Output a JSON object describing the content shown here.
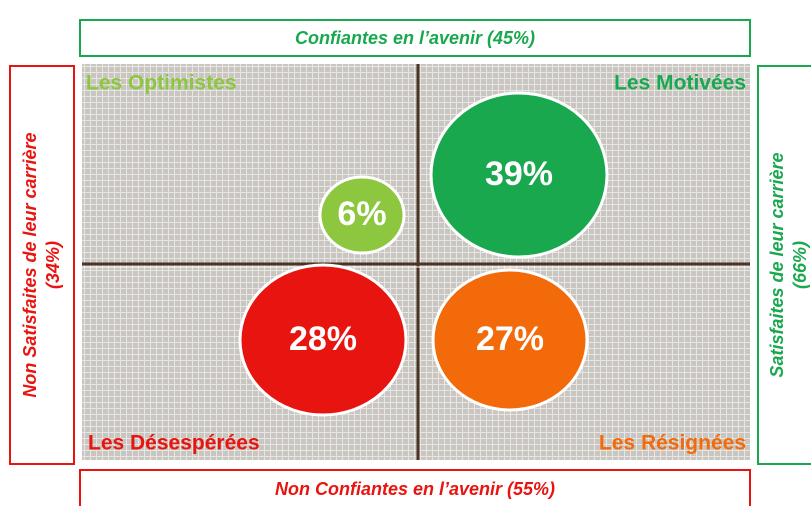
{
  "top": {
    "label": "Confiantes en l’avenir (45%)"
  },
  "bottom": {
    "label": "Non Confiantes en l’avenir (55%)"
  },
  "left": {
    "lines": [
      "Non Satisfaites de leur carrière",
      "(34%)"
    ]
  },
  "right": {
    "lines": [
      "Satisfaites de leur carrière",
      "(66%)"
    ]
  },
  "quadrants": [
    {
      "name": "Les Optimistes",
      "label": "6%"
    },
    {
      "name": "Les Motivées",
      "label": "39%"
    },
    {
      "name": "Les Désespérées",
      "label": "28%"
    },
    {
      "name": "Les Résignées",
      "label": "27%"
    }
  ]
}
